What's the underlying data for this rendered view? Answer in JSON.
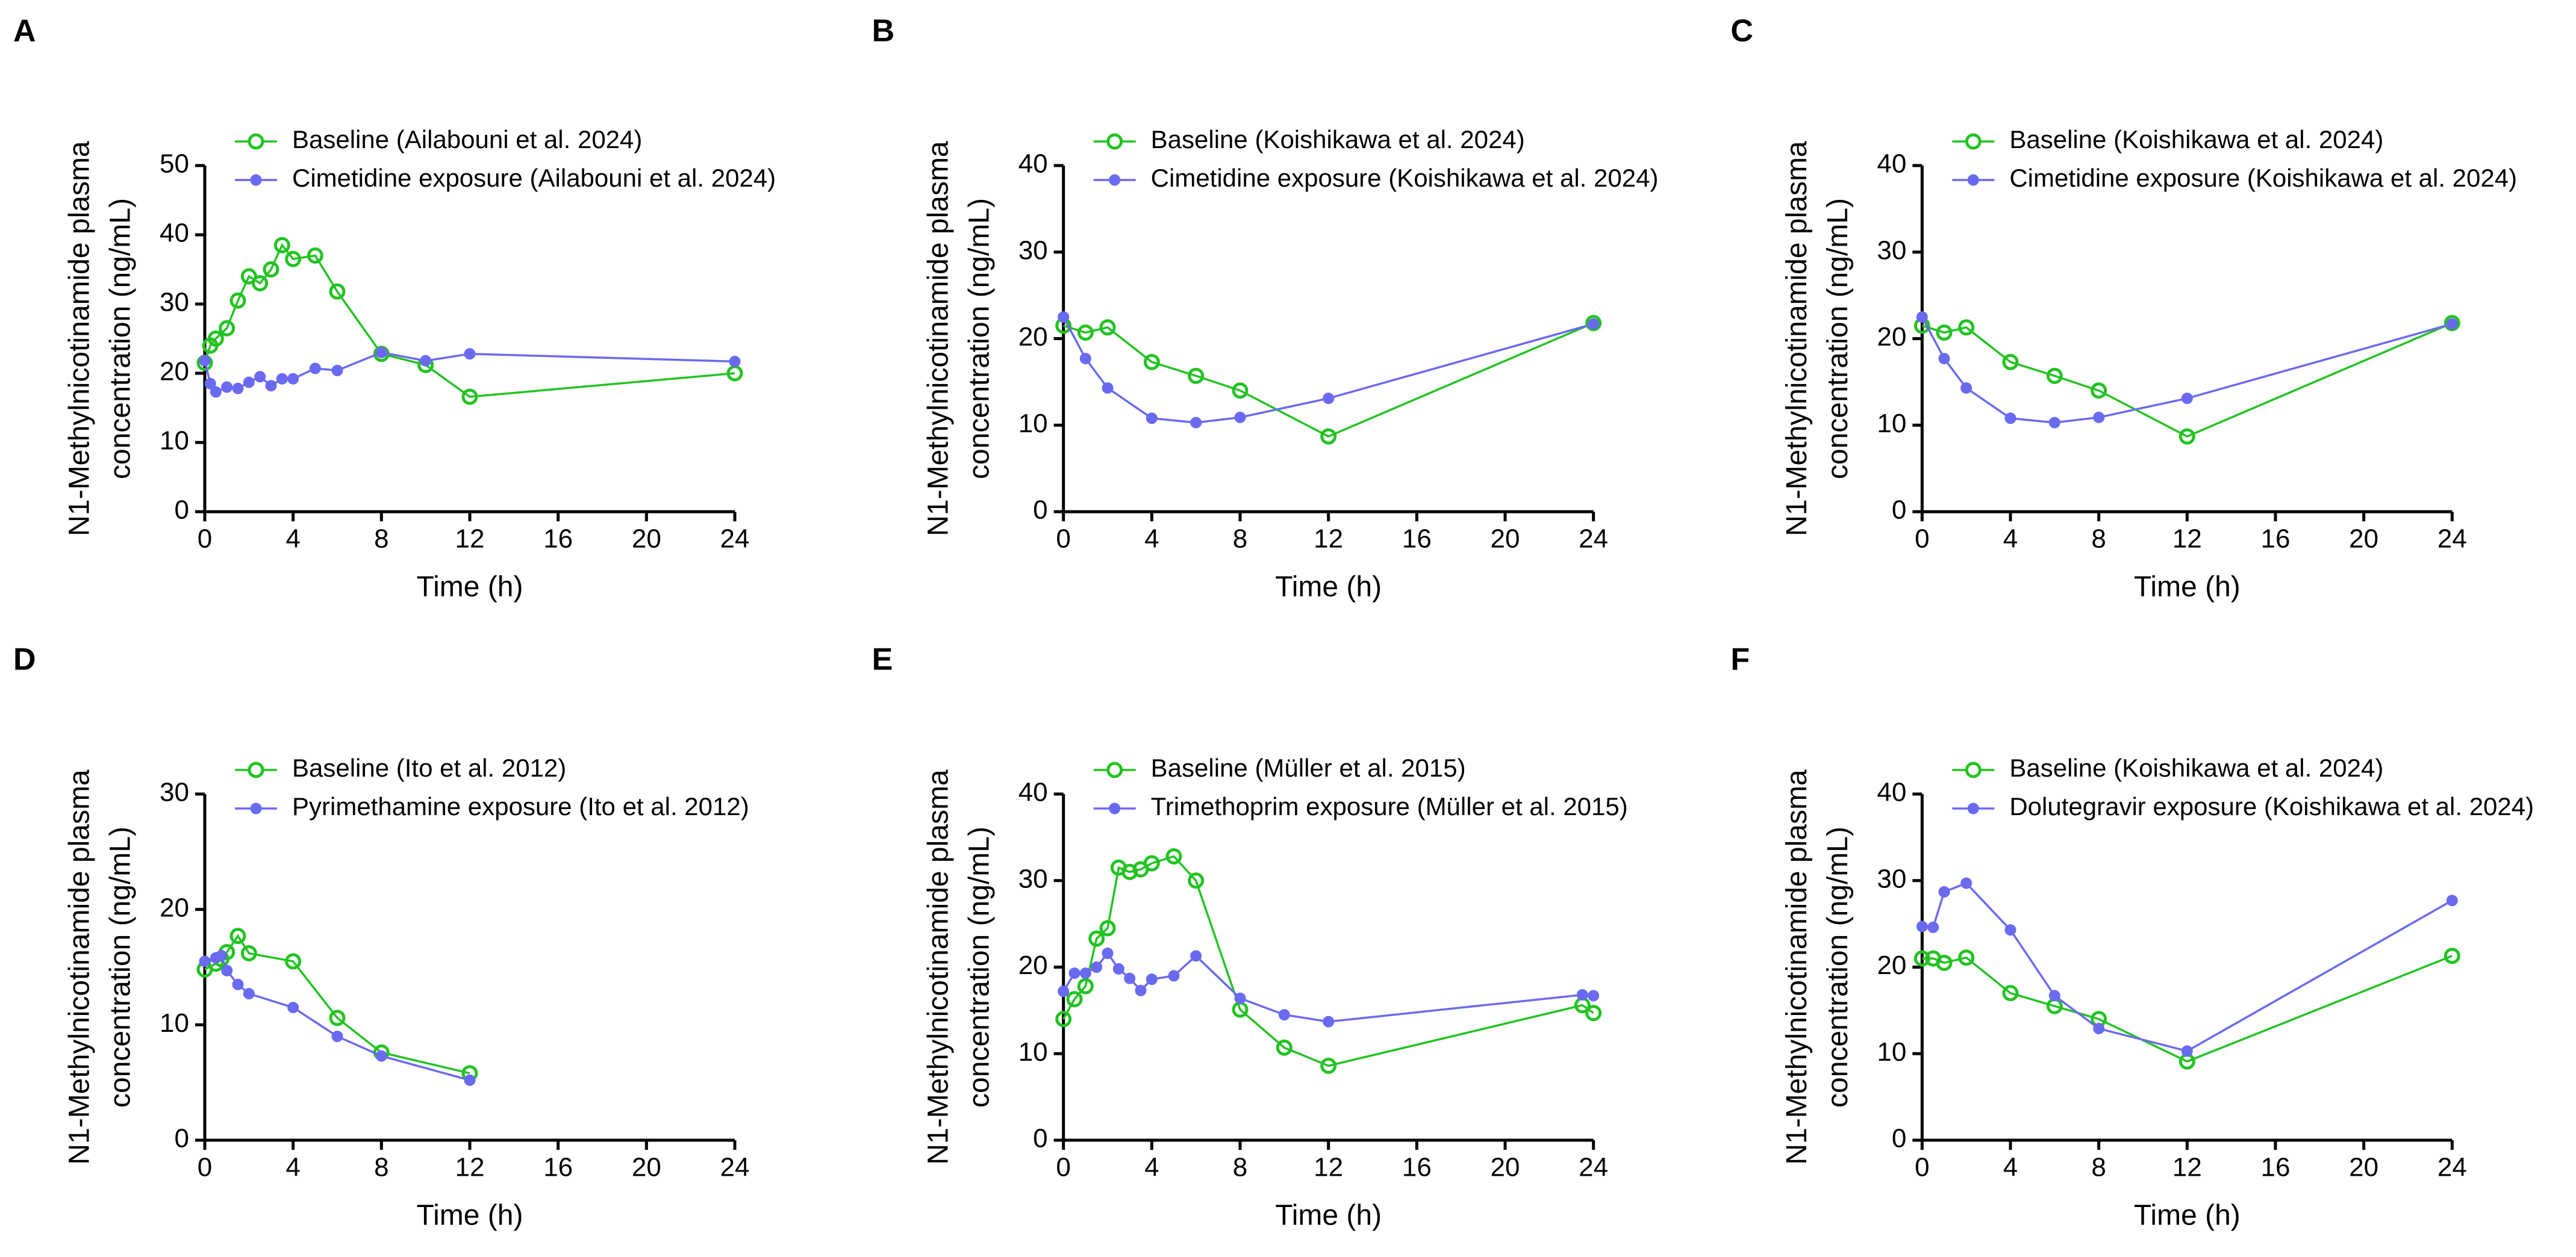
{
  "chart_data": [
    {
      "type": "line",
      "panel": "A",
      "xlabel": "Time (h)",
      "ylabel": [
        "N1-Methylnicotinamide plasma",
        "concentration (ng/mL)"
      ],
      "xlim": [
        0,
        24
      ],
      "xticks": [
        0,
        4,
        8,
        12,
        16,
        20,
        24
      ],
      "ylim": [
        0,
        50
      ],
      "yticks": [
        0,
        10,
        20,
        30,
        40,
        50
      ],
      "series": [
        {
          "name": "Baseline (Ailabouni et al. 2024)",
          "color": "#22c322",
          "marker": "open",
          "x": [
            0,
            0.25,
            0.5,
            1,
            1.5,
            2,
            2.5,
            3,
            3.5,
            4,
            5,
            6,
            8,
            10,
            12,
            24
          ],
          "values": [
            21.5,
            24,
            25,
            26.5,
            30.5,
            34,
            33,
            35,
            38.5,
            36.5,
            37,
            31.8,
            22.8,
            21.2,
            16.6,
            20
          ]
        },
        {
          "name": "Cimetidine exposure (Ailabouni et al. 2024)",
          "color": "#6a6af0",
          "marker": "filled",
          "x": [
            0,
            0.25,
            0.5,
            1,
            1.5,
            2,
            2.5,
            3,
            3.5,
            4,
            5,
            6,
            8,
            10,
            12,
            24
          ],
          "values": [
            21.8,
            18.5,
            17.3,
            18,
            17.8,
            18.7,
            19.5,
            18.2,
            19.2,
            19.2,
            20.7,
            20.4,
            23,
            21.8,
            22.8,
            21.7
          ]
        }
      ]
    },
    {
      "type": "line",
      "panel": "B",
      "xlabel": "Time (h)",
      "ylabel": [
        "N1-Methylnicotinamide plasma",
        "concentration (ng/mL)"
      ],
      "xlim": [
        0,
        24
      ],
      "xticks": [
        0,
        4,
        8,
        12,
        16,
        20,
        24
      ],
      "ylim": [
        0,
        40
      ],
      "yticks": [
        0,
        10,
        20,
        30,
        40
      ],
      "series": [
        {
          "name": "Baseline (Koishikawa et al. 2024)",
          "color": "#22c322",
          "marker": "open",
          "x": [
            0,
            1,
            2,
            4,
            6,
            8,
            12,
            24
          ],
          "values": [
            21.5,
            20.7,
            21.3,
            17.3,
            15.7,
            14,
            8.7,
            21.8
          ]
        },
        {
          "name": "Cimetidine exposure (Koishikawa et al. 2024)",
          "color": "#6a6af0",
          "marker": "filled",
          "x": [
            0,
            1,
            2,
            4,
            6,
            8,
            12,
            24
          ],
          "values": [
            22.5,
            17.7,
            14.3,
            10.8,
            10.3,
            10.9,
            13.1,
            21.7
          ]
        }
      ]
    },
    {
      "type": "line",
      "panel": "C",
      "xlabel": "Time (h)",
      "ylabel": [
        "N1-Methylnicotinamide plasma",
        "concentration (ng/mL)"
      ],
      "xlim": [
        0,
        24
      ],
      "xticks": [
        0,
        4,
        8,
        12,
        16,
        20,
        24
      ],
      "ylim": [
        0,
        40
      ],
      "yticks": [
        0,
        10,
        20,
        30,
        40
      ],
      "series": [
        {
          "name": "Baseline (Koishikawa et al. 2024)",
          "color": "#22c322",
          "marker": "open",
          "x": [
            0,
            1,
            2,
            4,
            6,
            8,
            12,
            24
          ],
          "values": [
            21.5,
            20.7,
            21.3,
            17.3,
            15.7,
            14,
            8.7,
            21.8
          ]
        },
        {
          "name": "Cimetidine exposure (Koishikawa et al. 2024)",
          "color": "#6a6af0",
          "marker": "filled",
          "x": [
            0,
            1,
            2,
            4,
            6,
            8,
            12,
            24
          ],
          "values": [
            22.5,
            17.7,
            14.3,
            10.8,
            10.3,
            10.9,
            13.1,
            21.7
          ]
        }
      ]
    },
    {
      "type": "line",
      "panel": "D",
      "xlabel": "Time (h)",
      "ylabel": [
        "N1-Methylnicotinamide plasma",
        "concentration (ng/mL)"
      ],
      "xlim": [
        0,
        24
      ],
      "xticks": [
        0,
        4,
        8,
        12,
        16,
        20,
        24
      ],
      "ylim": [
        0,
        30
      ],
      "yticks": [
        0,
        10,
        20,
        30
      ],
      "series": [
        {
          "name": "Baseline (Ito et al. 2012)",
          "color": "#22c322",
          "marker": "open",
          "x": [
            0,
            0.5,
            0.75,
            1,
            1.5,
            2,
            4,
            6,
            8,
            12
          ],
          "values": [
            14.8,
            15.3,
            15.7,
            16.3,
            17.7,
            16.2,
            15.5,
            10.6,
            7.6,
            5.8
          ]
        },
        {
          "name": "Pyrimethamine exposure (Ito et al. 2012)",
          "color": "#6a6af0",
          "marker": "filled",
          "x": [
            0,
            0.5,
            0.75,
            1,
            1.5,
            2,
            4,
            6,
            8,
            12
          ],
          "values": [
            15.5,
            15.8,
            16,
            14.7,
            13.5,
            12.7,
            11.5,
            9,
            7.3,
            5.2
          ]
        }
      ]
    },
    {
      "type": "line",
      "panel": "E",
      "xlabel": "Time (h)",
      "ylabel": [
        "N1-Methylnicotinamide plasma",
        "concentration (ng/mL)"
      ],
      "xlim": [
        0,
        24
      ],
      "xticks": [
        0,
        4,
        8,
        12,
        16,
        20,
        24
      ],
      "ylim": [
        0,
        40
      ],
      "yticks": [
        0,
        10,
        20,
        30,
        40
      ],
      "series": [
        {
          "name": "Baseline (Müller et al. 2015)",
          "color": "#22c322",
          "marker": "open",
          "x": [
            0,
            0.5,
            1,
            1.5,
            2,
            2.5,
            3,
            3.5,
            4,
            5,
            6,
            8,
            10,
            12,
            23.5,
            24
          ],
          "values": [
            14,
            16.3,
            17.8,
            23.3,
            24.5,
            31.5,
            31,
            31.3,
            32,
            32.8,
            30,
            15.1,
            10.7,
            8.6,
            15.6,
            14.7
          ]
        },
        {
          "name": "Trimethoprim exposure (Müller et al. 2015)",
          "color": "#6a6af0",
          "marker": "filled",
          "x": [
            0,
            0.5,
            1,
            1.5,
            2,
            2.5,
            3,
            3.5,
            4,
            5,
            6,
            8,
            10,
            12,
            23.5,
            24
          ],
          "values": [
            17.2,
            19.3,
            19.3,
            20,
            21.6,
            19.8,
            18.7,
            17.3,
            18.6,
            19,
            21.3,
            16.4,
            14.5,
            13.7,
            16.8,
            16.7
          ]
        }
      ]
    },
    {
      "type": "line",
      "panel": "F",
      "xlabel": "Time (h)",
      "ylabel": [
        "N1-Methylnicotinamide plasma",
        "concentration (ng/mL)"
      ],
      "xlim": [
        0,
        24
      ],
      "xticks": [
        0,
        4,
        8,
        12,
        16,
        20,
        24
      ],
      "ylim": [
        0,
        40
      ],
      "yticks": [
        0,
        10,
        20,
        30,
        40
      ],
      "series": [
        {
          "name": "Baseline (Koishikawa et al. 2024)",
          "color": "#22c322",
          "marker": "open",
          "x": [
            0,
            0.5,
            1,
            2,
            4,
            6,
            8,
            12,
            24
          ],
          "values": [
            21,
            21,
            20.5,
            21.1,
            17,
            15.5,
            14,
            9.1,
            21.3
          ]
        },
        {
          "name": "Dolutegravir exposure (Koishikawa et al. 2024)",
          "color": "#6a6af0",
          "marker": "filled",
          "x": [
            0,
            0.5,
            1,
            2,
            4,
            6,
            8,
            12,
            24
          ],
          "values": [
            24.7,
            24.6,
            28.7,
            29.7,
            24.3,
            16.7,
            12.9,
            10.3,
            27.7
          ]
        }
      ]
    }
  ]
}
